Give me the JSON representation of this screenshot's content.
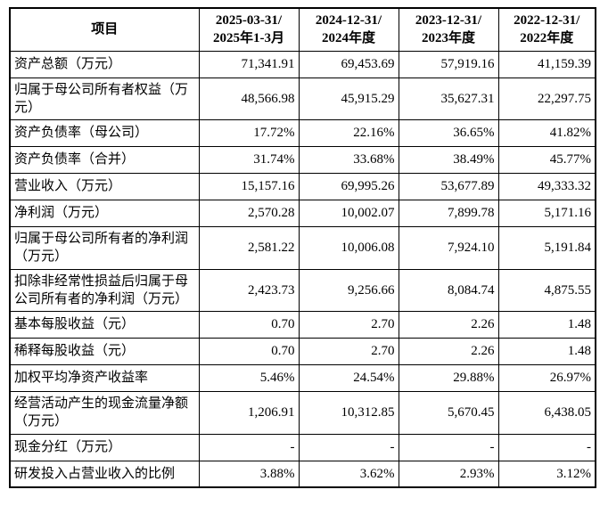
{
  "page": {
    "background_color": "#ffffff",
    "text_color": "#000000",
    "border_color": "#000000"
  },
  "table": {
    "columns": {
      "item_header": "项目",
      "periods": [
        {
          "date": "2025-03-31/",
          "period": "2025年1-3月"
        },
        {
          "date": "2024-12-31/",
          "period": "2024年度"
        },
        {
          "date": "2023-12-31/",
          "period": "2023年度"
        },
        {
          "date": "2022-12-31/",
          "period": "2022年度"
        }
      ]
    },
    "rows": [
      {
        "label": "资产总额（万元）",
        "values": [
          "71,341.91",
          "69,453.69",
          "57,919.16",
          "41,159.39"
        ]
      },
      {
        "label": "归属于母公司所有者权益（万元）",
        "values": [
          "48,566.98",
          "45,915.29",
          "35,627.31",
          "22,297.75"
        ]
      },
      {
        "label": "资产负债率（母公司）",
        "values": [
          "17.72%",
          "22.16%",
          "36.65%",
          "41.82%"
        ]
      },
      {
        "label": "资产负债率（合并）",
        "values": [
          "31.74%",
          "33.68%",
          "38.49%",
          "45.77%"
        ]
      },
      {
        "label": "营业收入（万元）",
        "values": [
          "15,157.16",
          "69,995.26",
          "53,677.89",
          "49,333.32"
        ]
      },
      {
        "label": "净利润（万元）",
        "values": [
          "2,570.28",
          "10,002.07",
          "7,899.78",
          "5,171.16"
        ]
      },
      {
        "label": "归属于母公司所有者的净利润（万元）",
        "values": [
          "2,581.22",
          "10,006.08",
          "7,924.10",
          "5,191.84"
        ]
      },
      {
        "label": "扣除非经常性损益后归属于母公司所有者的净利润（万元）",
        "values": [
          "2,423.73",
          "9,256.66",
          "8,084.74",
          "4,875.55"
        ]
      },
      {
        "label": "基本每股收益（元）",
        "values": [
          "0.70",
          "2.70",
          "2.26",
          "1.48"
        ]
      },
      {
        "label": "稀释每股收益（元）",
        "values": [
          "0.70",
          "2.70",
          "2.26",
          "1.48"
        ]
      },
      {
        "label": "加权平均净资产收益率",
        "values": [
          "5.46%",
          "24.54%",
          "29.88%",
          "26.97%"
        ]
      },
      {
        "label": "经营活动产生的现金流量净额（万元）",
        "values": [
          "1,206.91",
          "10,312.85",
          "5,670.45",
          "6,438.05"
        ]
      },
      {
        "label": "现金分红（万元）",
        "values": [
          "-",
          "-",
          "-",
          "-"
        ]
      },
      {
        "label": "研发投入占营业收入的比例",
        "values": [
          "3.88%",
          "3.62%",
          "2.93%",
          "3.12%"
        ]
      }
    ]
  }
}
